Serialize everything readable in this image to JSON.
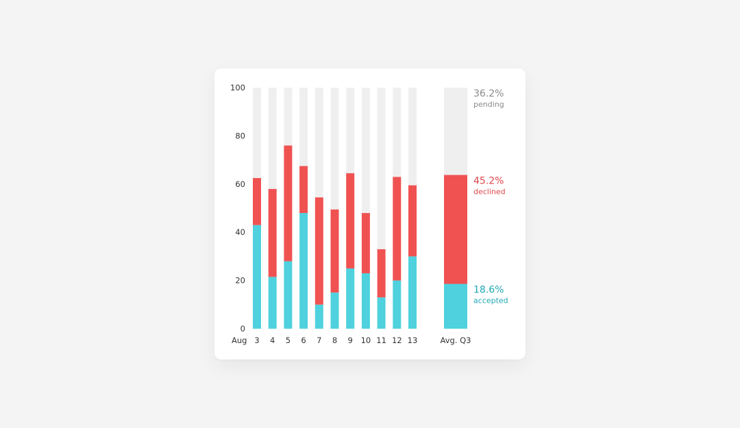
{
  "chart_data": {
    "type": "bar",
    "stacked": true,
    "x_prefix": "Aug",
    "categories": [
      "3",
      "4",
      "5",
      "6",
      "7",
      "8",
      "9",
      "10",
      "11",
      "12",
      "13"
    ],
    "series": [
      {
        "name": "accepted",
        "values": [
          43,
          21.5,
          28,
          48,
          10,
          15,
          25,
          23,
          13,
          20,
          30
        ]
      },
      {
        "name": "declined",
        "values": [
          19.5,
          36.5,
          48,
          19.5,
          44.5,
          34.5,
          39.5,
          25,
          20,
          43,
          29.5
        ]
      },
      {
        "name": "pending",
        "values": [
          37.5,
          42,
          24,
          32.5,
          45.5,
          50.5,
          35.5,
          52,
          67,
          37,
          40.5
        ]
      }
    ],
    "ylim": [
      0,
      100
    ],
    "yticks": [
      "0",
      "20",
      "40",
      "60",
      "80",
      "100"
    ],
    "grid": false,
    "summary": {
      "label": "Avg. Q3",
      "segments": [
        {
          "name": "accepted",
          "value": 18.6,
          "percent_label": "18.6%"
        },
        {
          "name": "declined",
          "value": 45.2,
          "percent_label": "45.2%"
        },
        {
          "name": "pending",
          "value": 36.2,
          "percent_label": "36.2%"
        }
      ]
    },
    "colors": {
      "accepted": "#4fd1de",
      "declined": "#f05252",
      "pending": "#efefef",
      "accepted_text": "#1fa8b5",
      "declined_text": "#e0464a",
      "pending_text": "#8a8a8a",
      "axis_text": "#333333"
    }
  }
}
